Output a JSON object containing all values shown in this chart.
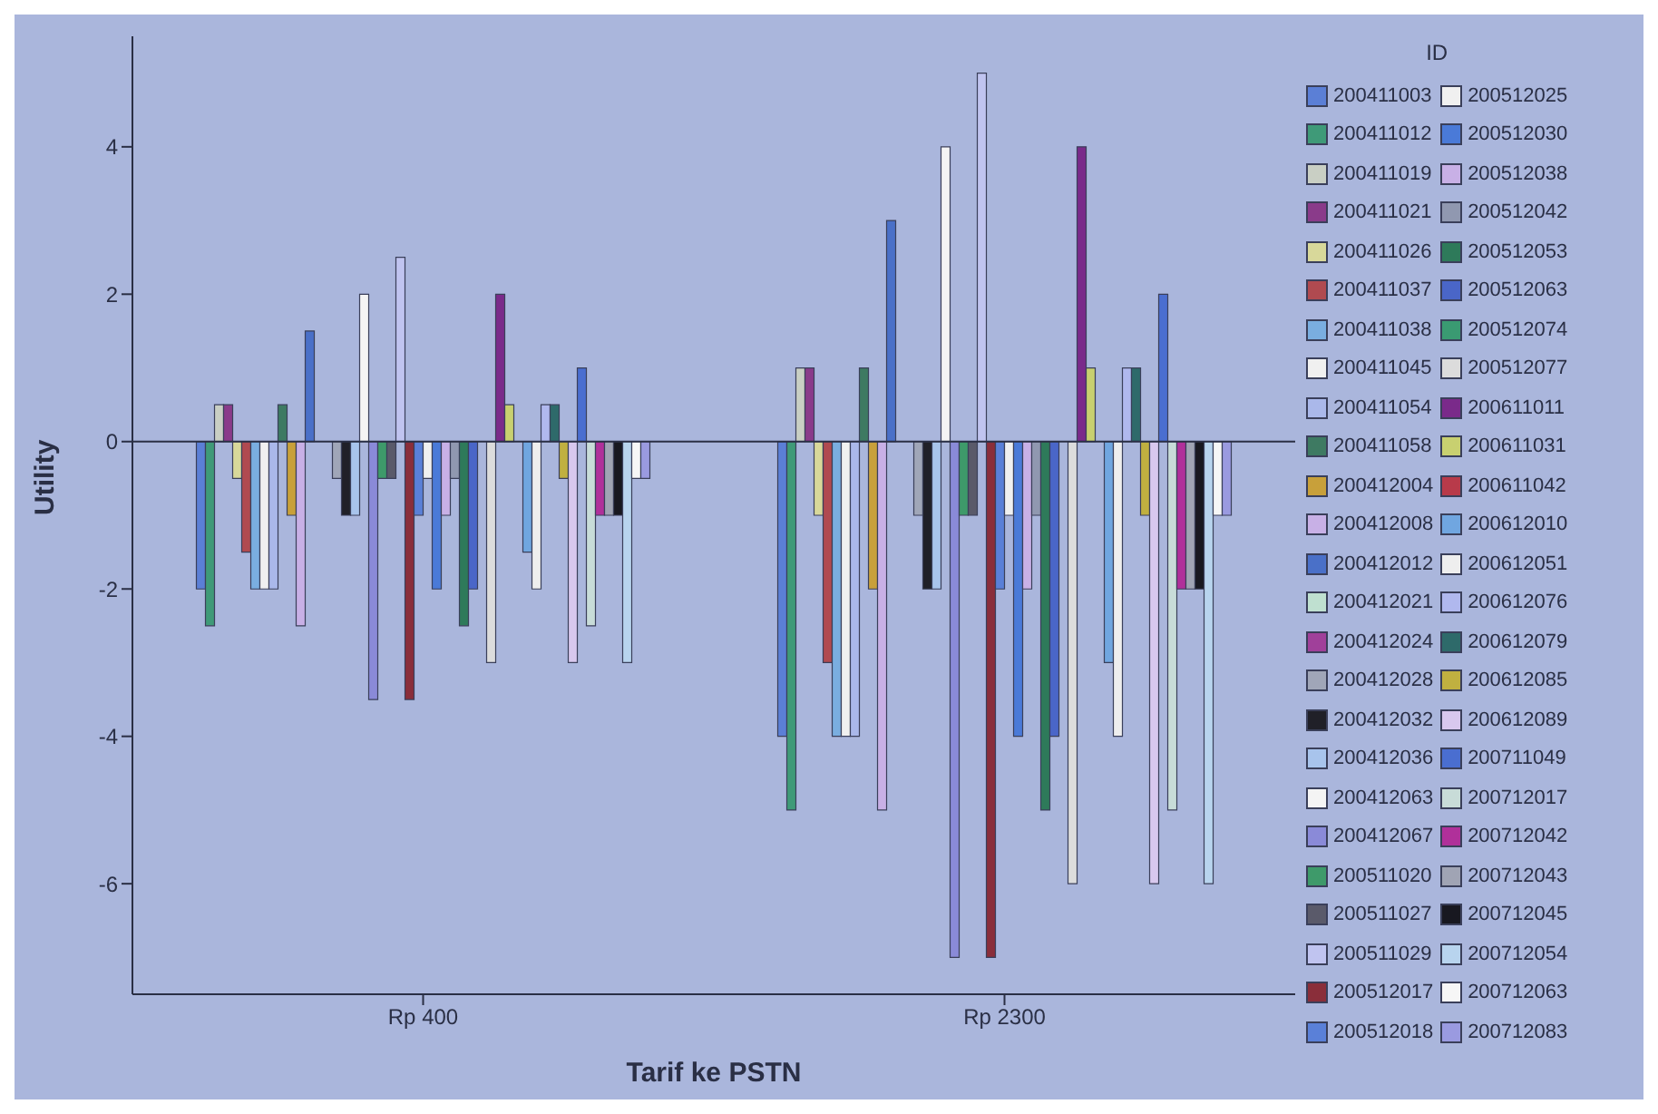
{
  "chart_data": {
    "type": "bar",
    "xlabel": "Tarif ke PSTN",
    "ylabel": "Utility",
    "legend_title": "ID",
    "categories": [
      "Rp 400",
      "Rp 2300"
    ],
    "ylim": [
      -7.5,
      5.5
    ],
    "yticks": [
      -6,
      -4,
      -2,
      0,
      2,
      4
    ],
    "grid": false,
    "legend": "right",
    "ref_lines": [
      {
        "axis": "y",
        "value": 0,
        "color": "#2a2f45"
      }
    ],
    "series": [
      {
        "name": "200411003",
        "color": "#5b7fd6",
        "values": [
          -2,
          -4
        ]
      },
      {
        "name": "200411012",
        "color": "#3f9a78",
        "values": [
          -2.5,
          -5
        ]
      },
      {
        "name": "200411019",
        "color": "#c9cfc4",
        "values": [
          0.5,
          1
        ]
      },
      {
        "name": "200411021",
        "color": "#8a3b8a",
        "values": [
          0.5,
          1
        ]
      },
      {
        "name": "200411026",
        "color": "#d8d89a",
        "values": [
          -0.5,
          -1
        ]
      },
      {
        "name": "200411037",
        "color": "#b04a50",
        "values": [
          -1.5,
          -3
        ]
      },
      {
        "name": "200411038",
        "color": "#7aaee0",
        "values": [
          -2,
          -4
        ]
      },
      {
        "name": "200411045",
        "color": "#f0f0f0",
        "values": [
          -2,
          -4
        ]
      },
      {
        "name": "200411054",
        "color": "#aab8ea",
        "values": [
          -2,
          -4
        ]
      },
      {
        "name": "200411058",
        "color": "#3e7a62",
        "values": [
          0.5,
          1
        ]
      },
      {
        "name": "200412004",
        "color": "#c8a03a",
        "values": [
          -1,
          -2
        ]
      },
      {
        "name": "200412008",
        "color": "#c8b0e6",
        "values": [
          -2.5,
          -5
        ]
      },
      {
        "name": "200412012",
        "color": "#4a70c8",
        "values": [
          1.5,
          3
        ]
      },
      {
        "name": "200412021",
        "color": "#bfe0d0",
        "values": [
          0,
          0
        ]
      },
      {
        "name": "200412024",
        "color": "#a0409a",
        "values": [
          0,
          0
        ]
      },
      {
        "name": "200412028",
        "color": "#a0a6b8",
        "values": [
          -0.5,
          -1
        ]
      },
      {
        "name": "200412032",
        "color": "#202028",
        "values": [
          -1,
          -2
        ]
      },
      {
        "name": "200412036",
        "color": "#a8c4ec",
        "values": [
          -1,
          -2
        ]
      },
      {
        "name": "200412063",
        "color": "#f4f4f4",
        "values": [
          2,
          4
        ]
      },
      {
        "name": "200412067",
        "color": "#8a8ad8",
        "values": [
          -3.5,
          -7
        ]
      },
      {
        "name": "200511020",
        "color": "#3e9a6a",
        "values": [
          -0.5,
          -1
        ]
      },
      {
        "name": "200511027",
        "color": "#5a5a6a",
        "values": [
          -0.5,
          -1
        ]
      },
      {
        "name": "200511029",
        "color": "#c0c4f0",
        "values": [
          2.5,
          5
        ]
      },
      {
        "name": "200512017",
        "color": "#8a2e3a",
        "values": [
          -3.5,
          -7
        ]
      },
      {
        "name": "200512018",
        "color": "#5a80d8",
        "values": [
          -1,
          -2
        ]
      },
      {
        "name": "200512025",
        "color": "#f0f0f0",
        "values": [
          -0.5,
          -1
        ]
      },
      {
        "name": "200512030",
        "color": "#4a7ad8",
        "values": [
          -2,
          -4
        ]
      },
      {
        "name": "200512038",
        "color": "#c8b0e6",
        "values": [
          -1,
          -2
        ]
      },
      {
        "name": "200512042",
        "color": "#9098b0",
        "values": [
          -0.5,
          -1
        ]
      },
      {
        "name": "200512053",
        "color": "#2e7a5a",
        "values": [
          -2.5,
          -5
        ]
      },
      {
        "name": "200512063",
        "color": "#4a66c8",
        "values": [
          -2,
          -4
        ]
      },
      {
        "name": "200512074",
        "color": "#3a9a72",
        "values": [
          0,
          0
        ]
      },
      {
        "name": "200512077",
        "color": "#dcdcdc",
        "values": [
          -3,
          -6
        ]
      },
      {
        "name": "200611011",
        "color": "#7a2a8a",
        "values": [
          2,
          4
        ]
      },
      {
        "name": "200611031",
        "color": "#c8d070",
        "values": [
          0.5,
          1
        ]
      },
      {
        "name": "200611042",
        "color": "#b83a4a",
        "values": [
          0,
          0
        ]
      },
      {
        "name": "200612010",
        "color": "#70a6e0",
        "values": [
          -1.5,
          -3
        ]
      },
      {
        "name": "200612051",
        "color": "#eeeeee",
        "values": [
          -2,
          -4
        ]
      },
      {
        "name": "200612076",
        "color": "#b0b8ee",
        "values": [
          0.5,
          1
        ]
      },
      {
        "name": "200612079",
        "color": "#2e6a6a",
        "values": [
          0.5,
          1
        ]
      },
      {
        "name": "200612085",
        "color": "#c0b040",
        "values": [
          -0.5,
          -1
        ]
      },
      {
        "name": "200612089",
        "color": "#d8c8ee",
        "values": [
          -3,
          -6
        ]
      },
      {
        "name": "200711049",
        "color": "#4a6ed0",
        "values": [
          1,
          2
        ]
      },
      {
        "name": "200712017",
        "color": "#c8dcd8",
        "values": [
          -2.5,
          -5
        ]
      },
      {
        "name": "200712042",
        "color": "#b0309a",
        "values": [
          -1,
          -2
        ]
      },
      {
        "name": "200712043",
        "color": "#a0a4b4",
        "values": [
          -1,
          -2
        ]
      },
      {
        "name": "200712045",
        "color": "#181820",
        "values": [
          -1,
          -2
        ]
      },
      {
        "name": "200712054",
        "color": "#b8d4ee",
        "values": [
          -3,
          -6
        ]
      },
      {
        "name": "200712063",
        "color": "#f6f6f6",
        "values": [
          -0.5,
          -1
        ]
      },
      {
        "name": "200712083",
        "color": "#9a9ae0",
        "values": [
          -0.5,
          -1
        ]
      }
    ]
  }
}
